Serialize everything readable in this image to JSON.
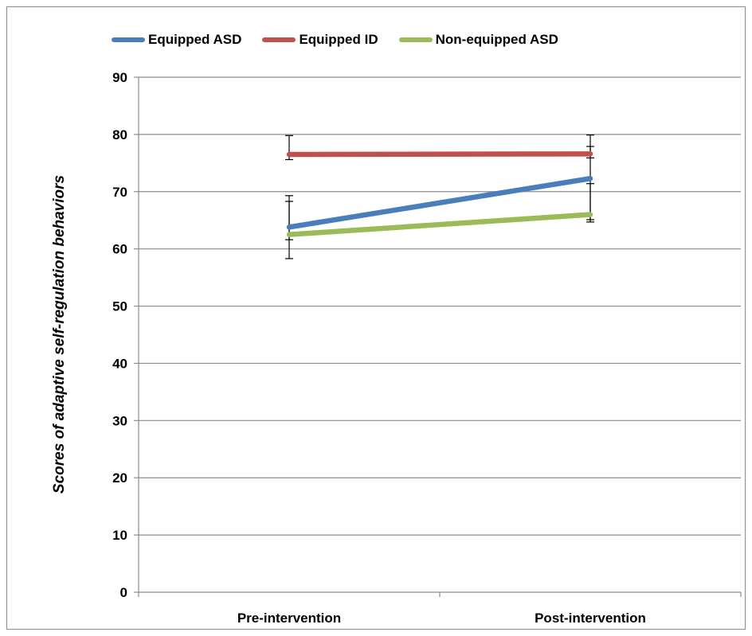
{
  "chart_data": {
    "type": "line",
    "categories": [
      "Pre-intervention",
      "Post-intervention"
    ],
    "series": [
      {
        "name": "Equipped ASD",
        "color": "#4a7ebb",
        "values": [
          63.8,
          72.3
        ],
        "error_low": [
          58.3,
          64.7
        ],
        "error_high": [
          69.3,
          79.9
        ]
      },
      {
        "name": "Equipped ID",
        "color": "#c0504d",
        "values": [
          76.5,
          76.6
        ],
        "error_low": [
          75.6,
          75.9
        ],
        "error_high": [
          79.8,
          77.9
        ]
      },
      {
        "name": "Non-equipped ASD",
        "color": "#9bbb59",
        "values": [
          62.5,
          66.0
        ],
        "error_low": [
          61.6,
          65.1
        ],
        "error_high": [
          68.3,
          71.4
        ]
      }
    ],
    "title": "",
    "xlabel": "",
    "ylabel": "Scores of adaptive self-regulation behaviors",
    "ylim": [
      0,
      90
    ],
    "yticks": [
      0,
      10,
      20,
      30,
      40,
      50,
      60,
      70,
      80,
      90
    ],
    "grid": true,
    "legend_position": "top"
  }
}
